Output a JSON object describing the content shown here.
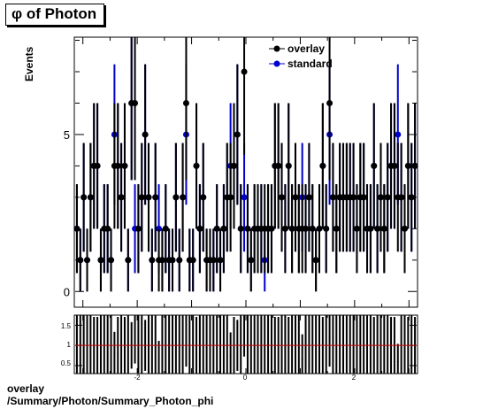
{
  "title": "φ of Photon",
  "footer": {
    "line1": "overlay",
    "line2": "/Summary/Photon/Summary_Photon_phi"
  },
  "colors": {
    "overlay": "#000000",
    "standard": "#0000cc",
    "ratio_line": "#cc0000"
  },
  "chart_data": [
    {
      "type": "scatter",
      "ylabel": "Events",
      "xlim": [
        -3.1416,
        3.1416
      ],
      "ylim": [
        -0.5,
        8.1
      ],
      "y_ticks": [
        0,
        5
      ],
      "grid": false,
      "legend_position": "top-right",
      "bins": 100,
      "series": [
        {
          "name": "overlay",
          "values": [
            2,
            1,
            3,
            1,
            3,
            4,
            4,
            1,
            2,
            2,
            1,
            4,
            4,
            3,
            4,
            1,
            6,
            6,
            2,
            3,
            5,
            3,
            1,
            3,
            1,
            1,
            2,
            1,
            1,
            3,
            1,
            3,
            6,
            1,
            1,
            4,
            2,
            3,
            1,
            1,
            1,
            2,
            1,
            2,
            3,
            3,
            4,
            5,
            2,
            7,
            2,
            1,
            2,
            2,
            2,
            2,
            2,
            2,
            4,
            4,
            3,
            2,
            4,
            2,
            3,
            2,
            2,
            2,
            3,
            2,
            1,
            2,
            4,
            2,
            6,
            3,
            2,
            3,
            3,
            3,
            3,
            3,
            2,
            3,
            3,
            2,
            2,
            4,
            2,
            3,
            2,
            3,
            4,
            4,
            3,
            3,
            2,
            4,
            3,
            4
          ]
        },
        {
          "name": "standard",
          "values": [
            2,
            1,
            3,
            1,
            3,
            4,
            4,
            1,
            2,
            2,
            1,
            5,
            4,
            3,
            4,
            1,
            6,
            2,
            2,
            3,
            5,
            3,
            1,
            3,
            2,
            1,
            2,
            1,
            1,
            3,
            1,
            3,
            5,
            1,
            1,
            4,
            2,
            3,
            1,
            1,
            1,
            2,
            1,
            2,
            3,
            4,
            4,
            5,
            2,
            3,
            2,
            1,
            2,
            2,
            2,
            1,
            2,
            2,
            4,
            4,
            3,
            2,
            4,
            2,
            3,
            2,
            3,
            2,
            3,
            2,
            1,
            2,
            4,
            2,
            5,
            3,
            2,
            3,
            3,
            3,
            3,
            3,
            2,
            3,
            3,
            2,
            2,
            4,
            2,
            3,
            2,
            3,
            4,
            4,
            5,
            3,
            2,
            4,
            3,
            4
          ]
        }
      ]
    },
    {
      "type": "scatter",
      "series_description": "ratio overlay/standard",
      "x_ticks": [
        "-2",
        "0",
        "2"
      ],
      "y_ticks": [
        "0.5",
        "1",
        "1.5"
      ],
      "ylim": [
        0.3,
        1.75
      ],
      "reference_line": 1.0
    }
  ]
}
